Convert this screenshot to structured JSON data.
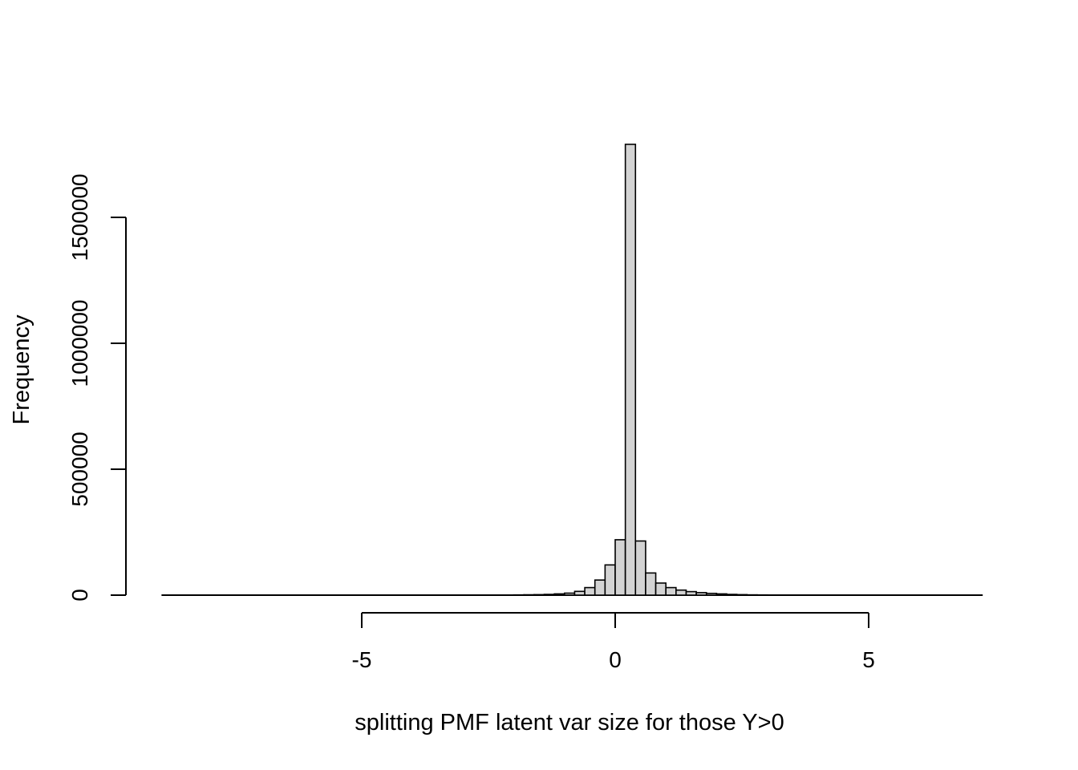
{
  "chart_data": {
    "type": "bar",
    "subtype": "histogram",
    "title": "",
    "xlabel": "splitting PMF latent var size for those Y>0",
    "ylabel": "Frequency",
    "xlim": [
      -9.0,
      7.25
    ],
    "ylim": [
      0,
      1800000
    ],
    "x_ticks": [
      -5,
      0,
      5
    ],
    "x_tick_labels": [
      "-5",
      "0",
      "5"
    ],
    "y_ticks": [
      0,
      500000,
      1000000,
      1500000
    ],
    "y_tick_labels": [
      "0",
      "500000",
      "1000000",
      "1500000"
    ],
    "bin_width": 0.2,
    "bins": [
      {
        "x0": -2.0,
        "x1": -1.8,
        "count": 1000
      },
      {
        "x0": -1.8,
        "x1": -1.6,
        "count": 1500
      },
      {
        "x0": -1.6,
        "x1": -1.4,
        "count": 2000
      },
      {
        "x0": -1.4,
        "x1": -1.2,
        "count": 3000
      },
      {
        "x0": -1.2,
        "x1": -1.0,
        "count": 5000
      },
      {
        "x0": -1.0,
        "x1": -0.8,
        "count": 8000
      },
      {
        "x0": -0.8,
        "x1": -0.6,
        "count": 15000
      },
      {
        "x0": -0.6,
        "x1": -0.4,
        "count": 30000
      },
      {
        "x0": -0.4,
        "x1": -0.2,
        "count": 60000
      },
      {
        "x0": -0.2,
        "x1": 0.0,
        "count": 120000
      },
      {
        "x0": 0.0,
        "x1": 0.2,
        "count": 220000
      },
      {
        "x0": 0.2,
        "x1": 0.4,
        "count": 1790000
      },
      {
        "x0": 0.4,
        "x1": 0.6,
        "count": 215000
      },
      {
        "x0": 0.6,
        "x1": 0.8,
        "count": 88000
      },
      {
        "x0": 0.8,
        "x1": 1.0,
        "count": 48000
      },
      {
        "x0": 1.0,
        "x1": 1.2,
        "count": 30000
      },
      {
        "x0": 1.2,
        "x1": 1.4,
        "count": 20000
      },
      {
        "x0": 1.4,
        "x1": 1.6,
        "count": 14000
      },
      {
        "x0": 1.6,
        "x1": 1.8,
        "count": 10000
      },
      {
        "x0": 1.8,
        "x1": 2.0,
        "count": 7000
      },
      {
        "x0": 2.0,
        "x1": 2.2,
        "count": 5000
      },
      {
        "x0": 2.2,
        "x1": 2.4,
        "count": 3000
      },
      {
        "x0": 2.4,
        "x1": 2.6,
        "count": 2000
      },
      {
        "x0": 2.6,
        "x1": 2.8,
        "count": 1200
      },
      {
        "x0": 2.8,
        "x1": 3.0,
        "count": 800
      }
    ],
    "baseline_range": [
      -8.95,
      7.25
    ],
    "colors": {
      "bar_fill": "#d3d3d3",
      "bar_stroke": "#000000",
      "axis": "#000000",
      "background": "#ffffff"
    },
    "grid": false,
    "legend": "none"
  }
}
